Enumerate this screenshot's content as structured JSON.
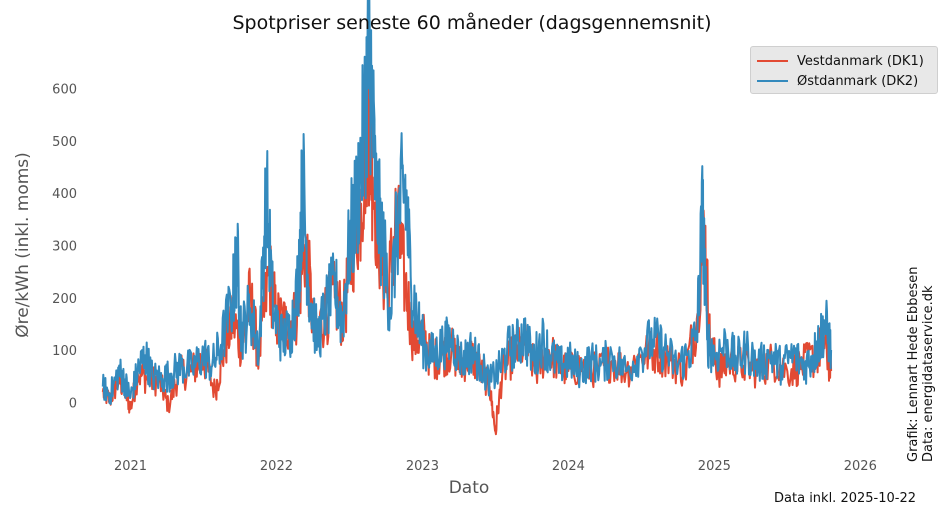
{
  "chart_data": {
    "type": "line",
    "title": "Spotpriser seneste 60 måneder (dagsgennemsnit)",
    "xlabel": "Dato",
    "ylabel": "Øre/kWh (inkl. moms)",
    "xlim": [
      2020.75,
      2026.08
    ],
    "ylim": [
      -95,
      670
    ],
    "x_ticks": [
      "2021",
      "2022",
      "2023",
      "2024",
      "2025",
      "2026"
    ],
    "y_ticks": [
      0,
      100,
      200,
      300,
      400,
      500,
      600
    ],
    "grid": false,
    "legend_position": "top-right",
    "x_range_data": [
      "2020-10-22",
      "2025-10-22"
    ],
    "series": [
      {
        "name": "Vestdanmark (DK1)",
        "color": "#e24a33",
        "points": [
          [
            2020.81,
            20
          ],
          [
            2020.86,
            5
          ],
          [
            2020.92,
            45
          ],
          [
            2020.96,
            25
          ],
          [
            2021.0,
            -12
          ],
          [
            2021.05,
            55
          ],
          [
            2021.12,
            45
          ],
          [
            2021.2,
            40
          ],
          [
            2021.26,
            -8
          ],
          [
            2021.33,
            55
          ],
          [
            2021.42,
            60
          ],
          [
            2021.5,
            85
          ],
          [
            2021.58,
            20
          ],
          [
            2021.64,
            100
          ],
          [
            2021.7,
            160
          ],
          [
            2021.76,
            110
          ],
          [
            2021.82,
            200
          ],
          [
            2021.88,
            85
          ],
          [
            2021.95,
            250
          ],
          [
            2022.0,
            160
          ],
          [
            2022.06,
            150
          ],
          [
            2022.13,
            160
          ],
          [
            2022.2,
            310
          ],
          [
            2022.26,
            120
          ],
          [
            2022.33,
            170
          ],
          [
            2022.4,
            200
          ],
          [
            2022.46,
            160
          ],
          [
            2022.52,
            300
          ],
          [
            2022.58,
            380
          ],
          [
            2022.63,
            560
          ],
          [
            2022.66,
            430
          ],
          [
            2022.71,
            300
          ],
          [
            2022.76,
            200
          ],
          [
            2022.82,
            350
          ],
          [
            2022.88,
            230
          ],
          [
            2022.94,
            120
          ],
          [
            2023.0,
            130
          ],
          [
            2023.06,
            80
          ],
          [
            2023.13,
            90
          ],
          [
            2023.2,
            100
          ],
          [
            2023.26,
            70
          ],
          [
            2023.33,
            90
          ],
          [
            2023.4,
            60
          ],
          [
            2023.46,
            30
          ],
          [
            2023.5,
            -55
          ],
          [
            2023.55,
            60
          ],
          [
            2023.62,
            90
          ],
          [
            2023.7,
            110
          ],
          [
            2023.78,
            60
          ],
          [
            2023.86,
            100
          ],
          [
            2023.94,
            70
          ],
          [
            2024.0,
            60
          ],
          [
            2024.1,
            70
          ],
          [
            2024.2,
            60
          ],
          [
            2024.3,
            80
          ],
          [
            2024.4,
            60
          ],
          [
            2024.5,
            90
          ],
          [
            2024.6,
            100
          ],
          [
            2024.7,
            80
          ],
          [
            2024.8,
            60
          ],
          [
            2024.88,
            160
          ],
          [
            2024.93,
            340
          ],
          [
            2024.97,
            110
          ],
          [
            2025.03,
            60
          ],
          [
            2025.1,
            80
          ],
          [
            2025.2,
            70
          ],
          [
            2025.3,
            60
          ],
          [
            2025.4,
            80
          ],
          [
            2025.5,
            60
          ],
          [
            2025.6,
            70
          ],
          [
            2025.7,
            90
          ],
          [
            2025.75,
            120
          ],
          [
            2025.8,
            60
          ]
        ]
      },
      {
        "name": "Østdanmark (DK2)",
        "color": "#348abd",
        "points": [
          [
            2020.81,
            30
          ],
          [
            2020.86,
            15
          ],
          [
            2020.92,
            60
          ],
          [
            2020.96,
            40
          ],
          [
            2021.0,
            10
          ],
          [
            2021.05,
            60
          ],
          [
            2021.1,
            90
          ],
          [
            2021.15,
            50
          ],
          [
            2021.22,
            45
          ],
          [
            2021.28,
            55
          ],
          [
            2021.35,
            70
          ],
          [
            2021.42,
            65
          ],
          [
            2021.5,
            90
          ],
          [
            2021.56,
            70
          ],
          [
            2021.62,
            110
          ],
          [
            2021.7,
            200
          ],
          [
            2021.73,
            280
          ],
          [
            2021.76,
            130
          ],
          [
            2021.82,
            180
          ],
          [
            2021.88,
            100
          ],
          [
            2021.93,
            400
          ],
          [
            2021.98,
            170
          ],
          [
            2022.04,
            120
          ],
          [
            2022.1,
            140
          ],
          [
            2022.15,
            230
          ],
          [
            2022.18,
            430
          ],
          [
            2022.22,
            220
          ],
          [
            2022.28,
            120
          ],
          [
            2022.34,
            180
          ],
          [
            2022.4,
            220
          ],
          [
            2022.45,
            150
          ],
          [
            2022.5,
            300
          ],
          [
            2022.55,
            380
          ],
          [
            2022.6,
            520
          ],
          [
            2022.63,
            650
          ],
          [
            2022.65,
            610
          ],
          [
            2022.68,
            400
          ],
          [
            2022.73,
            300
          ],
          [
            2022.78,
            180
          ],
          [
            2022.84,
            370
          ],
          [
            2022.88,
            415
          ],
          [
            2022.92,
            240
          ],
          [
            2022.97,
            150
          ],
          [
            2023.02,
            100
          ],
          [
            2023.08,
            90
          ],
          [
            2023.14,
            110
          ],
          [
            2023.2,
            120
          ],
          [
            2023.27,
            80
          ],
          [
            2023.34,
            100
          ],
          [
            2023.4,
            70
          ],
          [
            2023.46,
            40
          ],
          [
            2023.52,
            60
          ],
          [
            2023.58,
            100
          ],
          [
            2023.64,
            110
          ],
          [
            2023.7,
            130
          ],
          [
            2023.76,
            80
          ],
          [
            2023.82,
            120
          ],
          [
            2023.88,
            90
          ],
          [
            2023.94,
            70
          ],
          [
            2024.0,
            80
          ],
          [
            2024.08,
            60
          ],
          [
            2024.15,
            80
          ],
          [
            2024.22,
            70
          ],
          [
            2024.3,
            90
          ],
          [
            2024.4,
            60
          ],
          [
            2024.5,
            100
          ],
          [
            2024.58,
            120
          ],
          [
            2024.66,
            100
          ],
          [
            2024.74,
            70
          ],
          [
            2024.82,
            90
          ],
          [
            2024.88,
            130
          ],
          [
            2024.92,
            370
          ],
          [
            2024.95,
            120
          ],
          [
            2025.0,
            90
          ],
          [
            2025.08,
            110
          ],
          [
            2025.15,
            80
          ],
          [
            2025.22,
            100
          ],
          [
            2025.3,
            70
          ],
          [
            2025.38,
            90
          ],
          [
            2025.46,
            70
          ],
          [
            2025.54,
            90
          ],
          [
            2025.62,
            70
          ],
          [
            2025.68,
            90
          ],
          [
            2025.72,
            120
          ],
          [
            2025.76,
            150
          ],
          [
            2025.8,
            100
          ]
        ]
      }
    ]
  },
  "footer": {
    "credit_line1": "Grafik: Lennart Hede Ebbesen",
    "credit_line2": "Data: energidataservice.dk",
    "data_date": "Data inkl. 2025-10-22"
  }
}
